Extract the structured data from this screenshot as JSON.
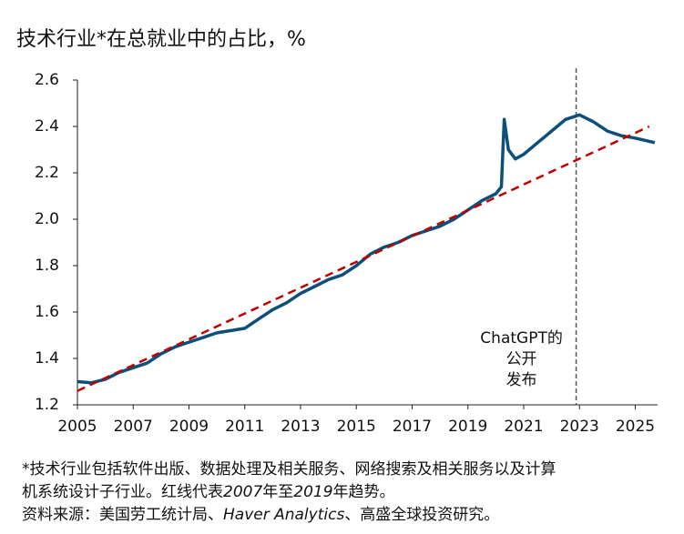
{
  "chart_data": {
    "type": "line",
    "title": "技术行业*在总就业中的占比，%",
    "xlim": [
      2005,
      2025.8
    ],
    "xticks": [
      2005,
      2007,
      2009,
      2011,
      2013,
      2015,
      2017,
      2019,
      2021,
      2023,
      2025
    ],
    "ylim": [
      1.2,
      2.6
    ],
    "yticks": [
      {
        "value": 1.2,
        "label": "1.2"
      },
      {
        "value": 1.4,
        "label": "1.4"
      },
      {
        "value": 1.6,
        "label": "1.6"
      },
      {
        "value": 1.8,
        "label": "1.8"
      },
      {
        "value": 2.0,
        "label": "2.0"
      },
      {
        "value": 2.2,
        "label": "2.2"
      },
      {
        "value": 2.4,
        "label": "2.4"
      },
      {
        "value": 2.6,
        "label": "2.6"
      }
    ],
    "grid": false,
    "series": [
      {
        "color": "#0b4f7a",
        "dash": false,
        "x": [
          2005.0,
          2005.5,
          2006.0,
          2006.5,
          2007.0,
          2007.5,
          2008.0,
          2008.5,
          2009.0,
          2009.5,
          2010.0,
          2010.5,
          2011.0,
          2011.5,
          2012.0,
          2012.5,
          2013.0,
          2013.5,
          2014.0,
          2014.5,
          2015.0,
          2015.5,
          2016.0,
          2016.5,
          2017.0,
          2017.5,
          2018.0,
          2018.5,
          2019.0,
          2019.5,
          2020.0,
          2020.2,
          2020.3,
          2020.45,
          2020.7,
          2021.0,
          2021.5,
          2022.0,
          2022.5,
          2023.0,
          2023.5,
          2024.0,
          2024.5,
          2025.0,
          2025.7
        ],
        "values": [
          1.3,
          1.295,
          1.31,
          1.34,
          1.36,
          1.38,
          1.42,
          1.45,
          1.47,
          1.49,
          1.51,
          1.52,
          1.53,
          1.57,
          1.61,
          1.64,
          1.68,
          1.71,
          1.74,
          1.76,
          1.8,
          1.85,
          1.88,
          1.9,
          1.93,
          1.95,
          1.97,
          2.0,
          2.04,
          2.08,
          2.11,
          2.14,
          2.43,
          2.3,
          2.26,
          2.28,
          2.33,
          2.38,
          2.43,
          2.45,
          2.42,
          2.38,
          2.36,
          2.35,
          2.33
        ]
      },
      {
        "color": "#c00000",
        "dash": true,
        "x": [
          2005.0,
          2025.5
        ],
        "values": [
          1.26,
          2.4
        ]
      }
    ],
    "vline": {
      "x": 2022.88,
      "label_lines": [
        "ChatGPT的",
        "公开",
        "发布"
      ]
    },
    "notes": [
      [
        "*技术行业包括软件出版、数据处理及相关服务、网络搜索及相关服务以及计算"
      ],
      [
        "机系统设计子行业。红线代表",
        "2007",
        "年至",
        "2019",
        "年趋势。"
      ],
      [
        "资料来源：美国劳工统计局、",
        "Haver Analytics",
        "、高盛全球投资研究。"
      ]
    ]
  }
}
